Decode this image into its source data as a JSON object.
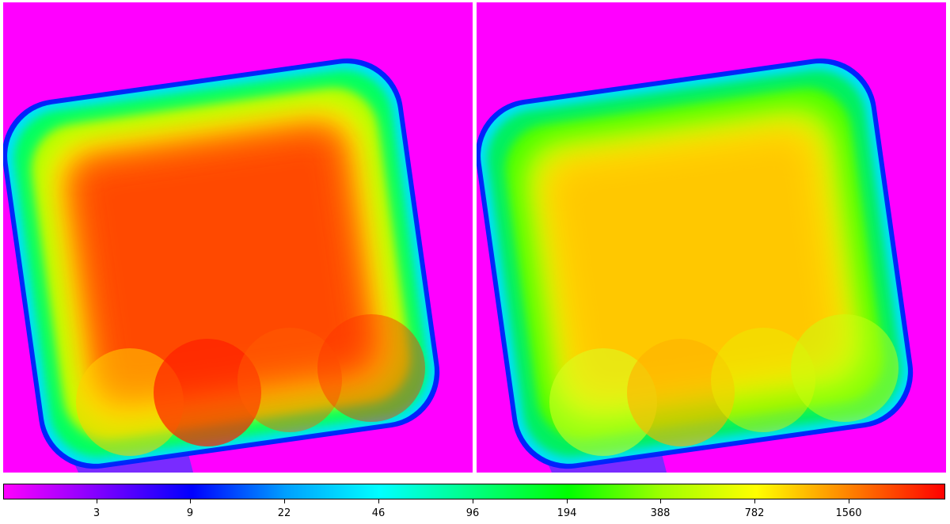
{
  "panels": [
    {
      "name": "left-map",
      "peak_color": "#ff2a00",
      "core_color": "#ff4a00",
      "mid_color": "#ffb000"
    },
    {
      "name": "right-map",
      "peak_color": "#ffb300",
      "core_color": "#ffcc00",
      "mid_color": "#e6f500"
    }
  ],
  "colorbar": {
    "ticks": [
      "3",
      "9",
      "22",
      "46",
      "96",
      "194",
      "388",
      "782",
      "1560"
    ],
    "stops": [
      "#ff00ff",
      "#8000ff",
      "#0000ff",
      "#00a0ff",
      "#00ffff",
      "#00ff80",
      "#00ff00",
      "#a0ff00",
      "#ffff00",
      "#ff8000",
      "#ff0000"
    ]
  },
  "colors": {
    "background": "#ff00ff",
    "separator": "#ffffff"
  }
}
